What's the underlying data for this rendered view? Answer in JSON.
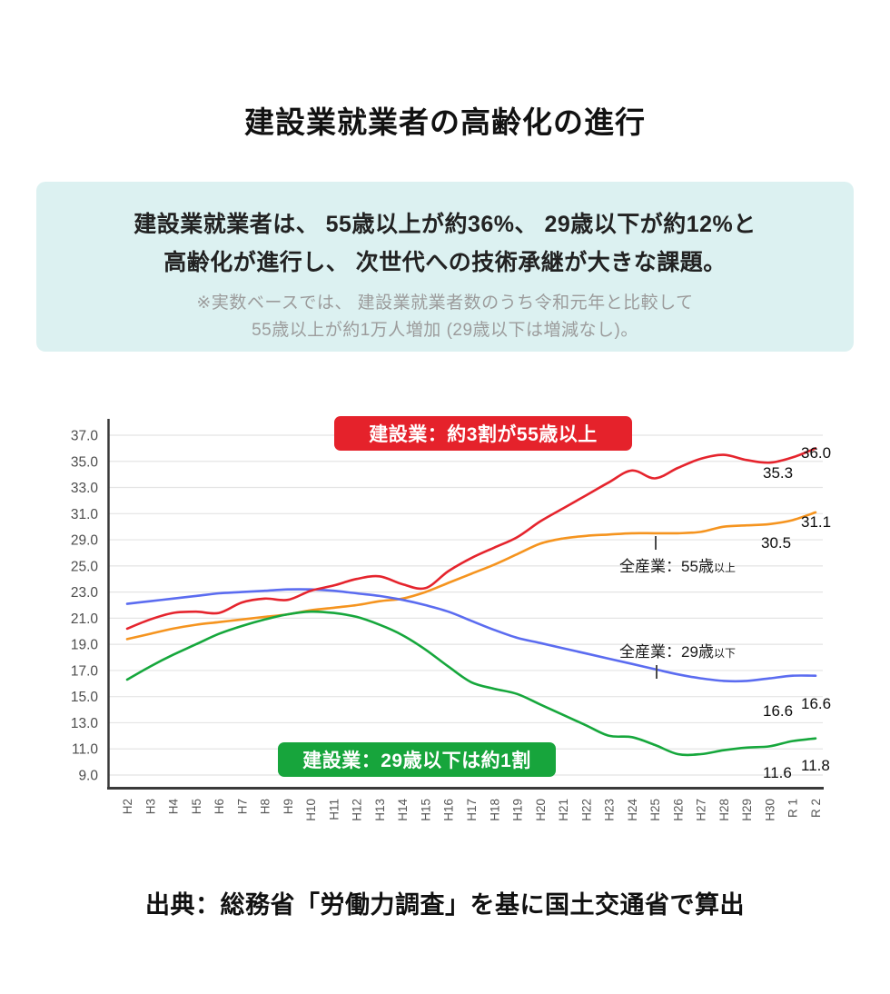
{
  "title": "建設業就業者の高齢化の進行",
  "summary_box": {
    "line1": "建設業就業者は、 55歳以上が約36%、 29歳以下が約12%と",
    "line2": "高齢化が進行し、 次世代への技術承継が大きな課題。",
    "note1": "※実数ベースでは、 建設業就業者数のうち令和元年と比較して",
    "note2": "55歳以上が約1万人増加 (29歳以下は増減なし)。"
  },
  "source": "出典：総務省「労働力調査」を基に国土交通省で算出",
  "colors": {
    "info_box_bg": "#dcf1f1",
    "badge_red": "#e5222b",
    "badge_green": "#17a53c",
    "gridline": "#e4e4e4",
    "axis": "#3a3a3a",
    "tick_label": "#4d4d4d"
  },
  "chart_data": {
    "type": "line",
    "categories": [
      "H2",
      "H3",
      "H4",
      "H5",
      "H6",
      "H7",
      "H8",
      "H9",
      "H10",
      "H11",
      "H12",
      "H13",
      "H14",
      "H15",
      "H16",
      "H17",
      "H18",
      "H19",
      "H20",
      "H21",
      "H22",
      "H23",
      "H24",
      "H25",
      "H26",
      "H27",
      "H28",
      "H29",
      "H30",
      "R 1",
      "R 2"
    ],
    "y_tick_labels": [
      "37.0",
      "35.0",
      "33.0",
      "31.0",
      "29.0",
      "25.0",
      "23.0",
      "21.0",
      "19.0",
      "17.0",
      "15.0",
      "13.0",
      "11.0",
      "9.0"
    ],
    "y_axis_ticks": [
      9.0,
      11.0,
      13.0,
      15.0,
      17.0,
      19.0,
      21.0,
      23.0,
      25.0,
      29.0,
      31.0,
      33.0,
      35.0,
      37.0
    ],
    "grid": "horizontal-only",
    "legend_position": "inline-annotations",
    "series": [
      {
        "name": "建設業 55歳以上",
        "color": "#e5242d",
        "values": [
          20.2,
          20.9,
          21.4,
          21.5,
          21.4,
          22.2,
          22.5,
          22.4,
          23.1,
          23.5,
          24.0,
          24.2,
          23.6,
          23.3,
          24.6,
          26.2,
          27.8,
          29.2,
          30.4,
          31.4,
          32.4,
          33.4,
          34.3,
          33.7,
          34.5,
          35.2,
          35.5,
          35.1,
          34.9,
          35.3,
          36.0
        ],
        "end_labels": {
          "r1": "35.3",
          "r2": "36.0"
        }
      },
      {
        "name": "全産業 55歳以上",
        "color": "#f5941f",
        "values": [
          19.4,
          19.8,
          20.2,
          20.5,
          20.7,
          20.9,
          21.1,
          21.3,
          21.6,
          21.8,
          22.0,
          22.3,
          22.5,
          23.0,
          23.7,
          24.4,
          25.2,
          26.8,
          28.4,
          29.1,
          29.3,
          29.4,
          29.5,
          29.5,
          29.5,
          29.6,
          30.0,
          30.1,
          30.2,
          30.5,
          31.1
        ],
        "end_labels": {
          "r1": "30.5",
          "r2": "31.1"
        }
      },
      {
        "name": "全産業 29歳以下",
        "color": "#5b6cf0",
        "values": [
          22.1,
          22.3,
          22.5,
          22.7,
          22.9,
          23.0,
          23.1,
          23.2,
          23.2,
          23.1,
          22.9,
          22.7,
          22.4,
          22.0,
          21.5,
          20.8,
          20.1,
          19.5,
          19.1,
          18.7,
          18.3,
          17.9,
          17.5,
          17.1,
          16.7,
          16.4,
          16.2,
          16.2,
          16.4,
          16.6,
          16.6
        ],
        "end_labels": {
          "r1": "16.6",
          "r2": "16.6"
        }
      },
      {
        "name": "建設業 29歳以下",
        "color": "#16a73c",
        "values": [
          16.3,
          17.3,
          18.2,
          19.0,
          19.8,
          20.4,
          20.9,
          21.3,
          21.5,
          21.4,
          21.1,
          20.5,
          19.7,
          18.6,
          17.3,
          16.1,
          15.6,
          15.2,
          14.4,
          13.6,
          12.8,
          12.0,
          11.9,
          11.3,
          10.6,
          10.6,
          10.9,
          11.1,
          11.2,
          11.6,
          11.8
        ],
        "end_labels": {
          "r1": "11.6",
          "r2": "11.8"
        }
      }
    ],
    "badges": {
      "construction_55": "建設業：約3割が55歳以上",
      "construction_29": "建設業：29歳以下は約1割"
    },
    "inline_labels": {
      "all_55_main": "全産業：55歳",
      "all_55_small": "以上",
      "all_29_main": "全産業：29歳",
      "all_29_small": "以下"
    }
  }
}
